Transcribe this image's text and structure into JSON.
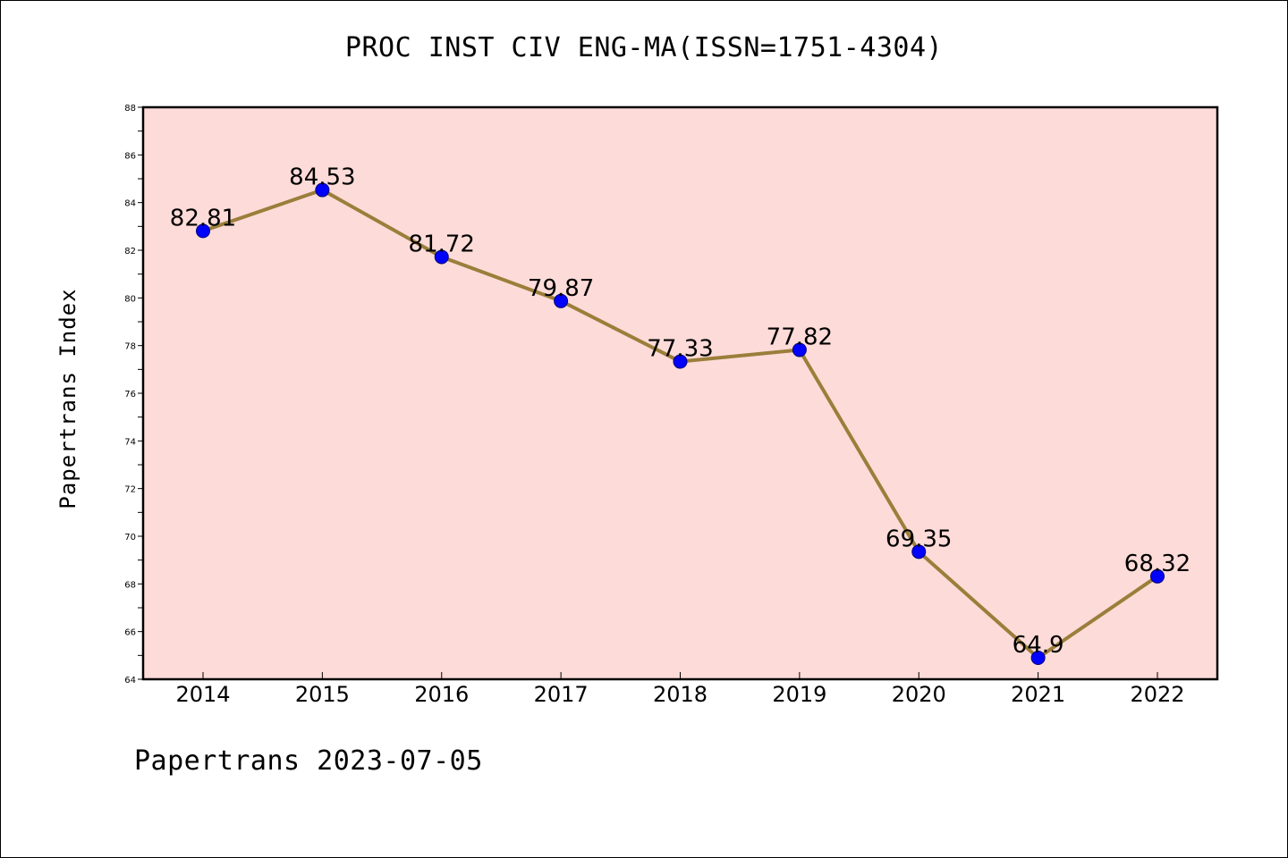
{
  "title": "PROC INST CIV ENG-MA(ISSN=1751-4304)",
  "footer": "Papertrans 2023-07-05",
  "chart_data": {
    "type": "line",
    "title": "PROC INST CIV ENG-MA(ISSN=1751-4304)",
    "xlabel": "",
    "ylabel": "Papertrans Index",
    "categories": [
      "2014",
      "2015",
      "2016",
      "2017",
      "2018",
      "2019",
      "2020",
      "2021",
      "2022"
    ],
    "values": [
      82.81,
      84.53,
      81.72,
      79.87,
      77.33,
      77.82,
      69.35,
      64.9,
      68.32
    ],
    "data_labels": [
      "82.81",
      "84.53",
      "81.72",
      "79.87",
      "77.33",
      "77.82",
      "69.35",
      "64.9",
      "68.32"
    ],
    "ylim": [
      64,
      88
    ],
    "yticks": [
      64,
      66,
      68,
      70,
      72,
      74,
      76,
      78,
      80,
      82,
      84,
      86,
      88
    ],
    "grid": false,
    "legend": "none",
    "colors": {
      "plot_background": "#fddbd8",
      "line": "#9a7e3a",
      "marker": "#0000ff",
      "marker_edge": "#00007a"
    }
  }
}
